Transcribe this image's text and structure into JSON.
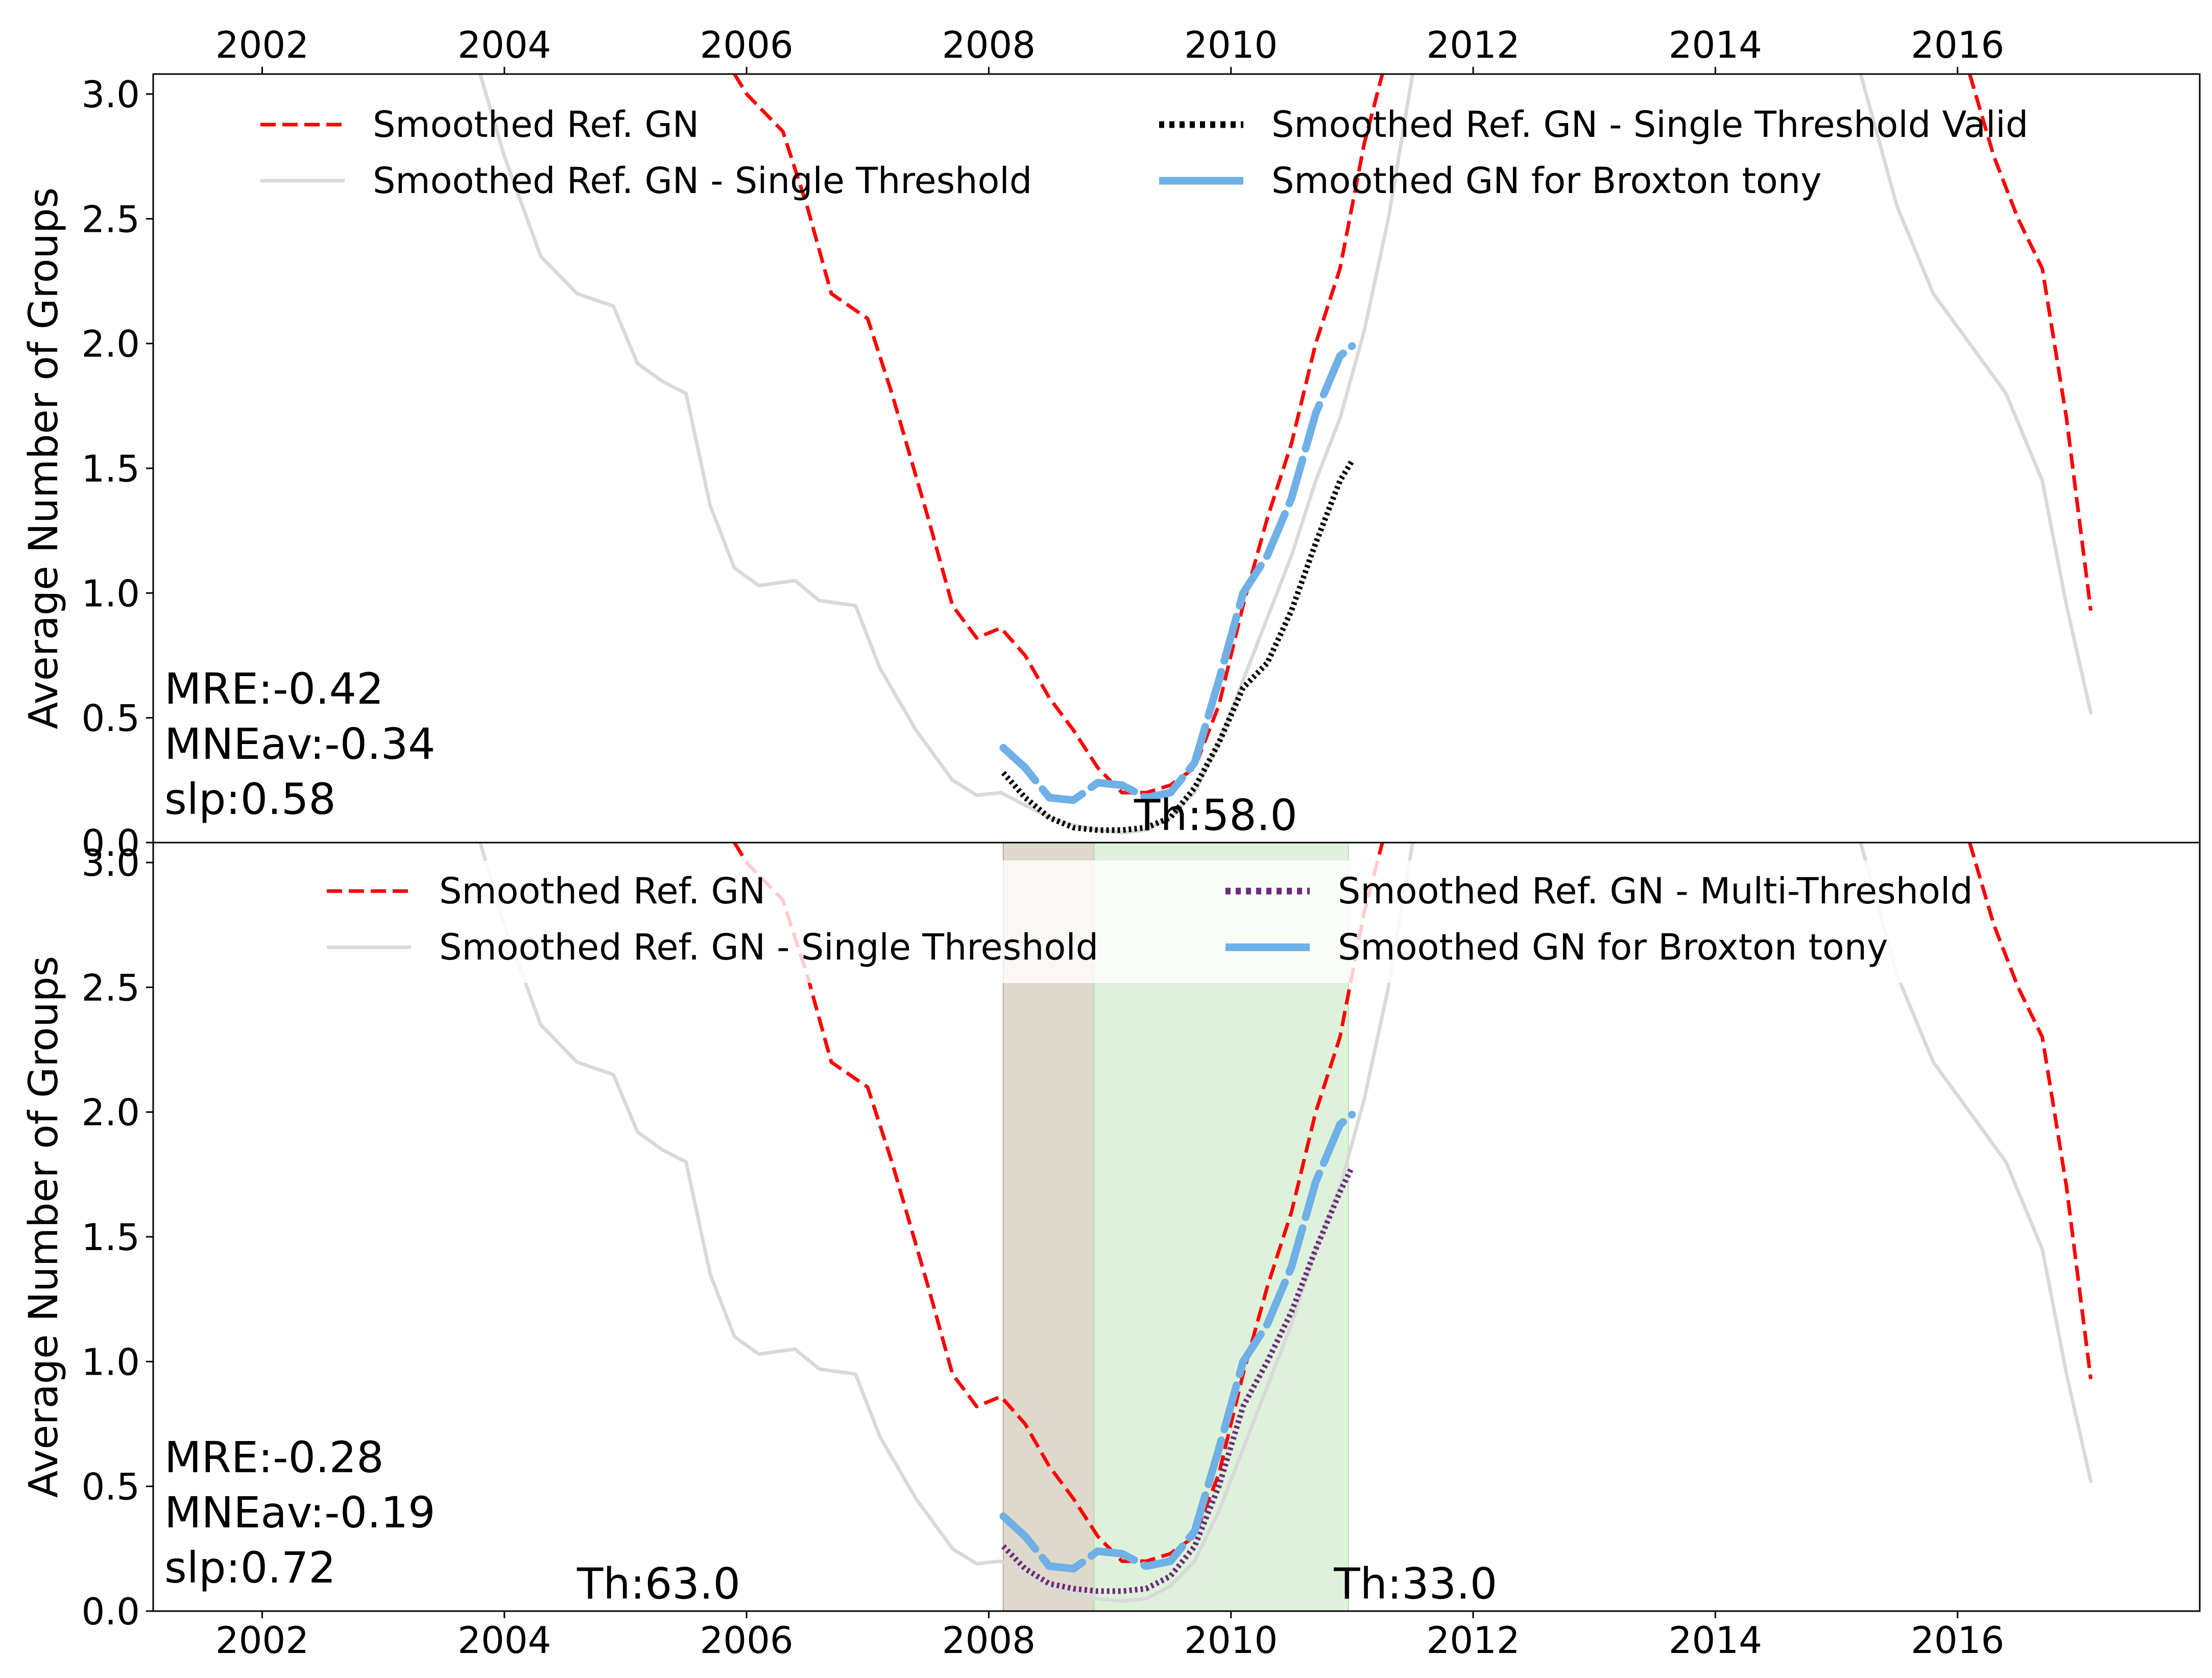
{
  "colors": {
    "ref": "#ff0000",
    "single": "#d9d9d9",
    "valid": "#000000",
    "multi": "#6b2c7a",
    "observer": "#6fb0e6",
    "span_brown": "#b5ab8c",
    "span_green": "#b6e2b0"
  },
  "chart_data": [
    {
      "type": "line",
      "x_ticks": [
        2002,
        2004,
        2006,
        2008,
        2010,
        2012,
        2014,
        2016
      ],
      "x_tick_labels": [
        "2002",
        "2004",
        "2006",
        "2008",
        "2010",
        "2012",
        "2014",
        "2016"
      ],
      "xlim": [
        2001.1,
        2018.0
      ],
      "ylim": [
        0,
        3.08
      ],
      "y_ticks": [
        0.0,
        0.5,
        1.0,
        1.5,
        2.0,
        2.5,
        3.0
      ],
      "y_tick_labels": [
        "0.0",
        "0.5",
        "1.0",
        "1.5",
        "2.0",
        "2.5",
        "3.0"
      ],
      "x_axis_position": "top",
      "ylabel": "Average Number of Groups",
      "legend": {
        "columns": 2,
        "entries": [
          {
            "label": "Smoothed Ref. GN",
            "style": "dashed",
            "color": "#ff0000"
          },
          {
            "label": "Smoothed Ref. GN - Single Threshold",
            "style": "solid",
            "color": "#d9d9d9"
          },
          {
            "label": "Smoothed Ref. GN - Single Threshold Valid",
            "style": "dotted",
            "color": "#000000"
          },
          {
            "label": "Smoothed GN for Broxton tony",
            "style": "solid-thick",
            "color": "#6fb0e6"
          }
        ]
      },
      "stats": [
        "MRE:-0.42",
        "MNEav:-0.34",
        "slp:0.58"
      ],
      "threshold_labels": [
        {
          "text": "Th:58.0",
          "x": 2009.2,
          "y": 0.05
        }
      ],
      "spans": [],
      "series": [
        {
          "name": "Smoothed Ref. GN",
          "role": "ref",
          "x": [
            2005.9,
            2006.0,
            2006.3,
            2006.5,
            2006.7,
            2007.0,
            2007.2,
            2007.5,
            2007.7,
            2007.9,
            2008.1,
            2008.3,
            2008.5,
            2008.7,
            2008.9,
            2009.1,
            2009.3,
            2009.5,
            2009.7,
            2009.9,
            2010.1,
            2010.3,
            2010.5,
            2010.7,
            2010.9,
            2011.1,
            2011.25
          ],
          "y": [
            3.08,
            3.0,
            2.85,
            2.55,
            2.2,
            2.1,
            1.8,
            1.3,
            0.95,
            0.82,
            0.86,
            0.75,
            0.58,
            0.45,
            0.3,
            0.2,
            0.2,
            0.23,
            0.3,
            0.55,
            0.95,
            1.3,
            1.6,
            2.0,
            2.3,
            2.8,
            3.08
          ]
        },
        {
          "name": "Smoothed Ref. GN",
          "role": "ref",
          "x": [
            2016.1,
            2016.3,
            2016.5,
            2016.7,
            2016.9,
            2017.1
          ],
          "y": [
            3.08,
            2.75,
            2.5,
            2.3,
            1.7,
            0.93
          ]
        },
        {
          "name": "Smoothed Ref. GN - Single Threshold",
          "role": "single",
          "x": [
            2003.8,
            2004.0,
            2004.3,
            2004.6,
            2004.9,
            2005.1,
            2005.3,
            2005.5,
            2005.7,
            2005.9,
            2006.1,
            2006.4,
            2006.6,
            2006.9,
            2007.1,
            2007.4,
            2007.7,
            2007.9,
            2008.1,
            2008.3,
            2008.5,
            2008.7,
            2008.9,
            2009.1,
            2009.3,
            2009.5,
            2009.7,
            2009.9,
            2010.1,
            2010.3,
            2010.5,
            2010.7,
            2010.9,
            2011.1,
            2011.3,
            2011.5
          ],
          "y": [
            3.08,
            2.75,
            2.35,
            2.2,
            2.15,
            1.92,
            1.85,
            1.8,
            1.35,
            1.1,
            1.03,
            1.05,
            0.97,
            0.95,
            0.7,
            0.45,
            0.25,
            0.19,
            0.2,
            0.15,
            0.1,
            0.07,
            0.05,
            0.04,
            0.05,
            0.1,
            0.2,
            0.4,
            0.65,
            0.9,
            1.15,
            1.45,
            1.7,
            2.05,
            2.5,
            3.08
          ]
        },
        {
          "name": "Smoothed Ref. GN - Single Threshold",
          "role": "single",
          "x": [
            2015.2,
            2015.5,
            2015.8,
            2016.1,
            2016.4,
            2016.7,
            2016.9,
            2017.1
          ],
          "y": [
            3.08,
            2.55,
            2.2,
            2.0,
            1.8,
            1.45,
            0.95,
            0.52
          ]
        },
        {
          "name": "Smoothed Ref. GN - Single Threshold Valid",
          "role": "valid",
          "x": [
            2008.12,
            2008.3,
            2008.5,
            2008.7,
            2008.9,
            2009.1,
            2009.3,
            2009.5,
            2009.7,
            2009.9,
            2010.1,
            2010.3,
            2010.5,
            2010.7,
            2010.9,
            2011.0
          ],
          "y": [
            0.28,
            0.18,
            0.1,
            0.06,
            0.05,
            0.05,
            0.06,
            0.1,
            0.22,
            0.4,
            0.62,
            0.72,
            0.93,
            1.2,
            1.45,
            1.53
          ]
        },
        {
          "name": "Smoothed GN for Broxton tony",
          "role": "observer",
          "x": [
            2008.12,
            2008.3,
            2008.5,
            2008.7,
            2008.9,
            2009.1,
            2009.3,
            2009.5,
            2009.7,
            2009.9,
            2010.1,
            2010.3,
            2010.5,
            2010.7,
            2010.9,
            2011.0
          ],
          "y": [
            0.38,
            0.3,
            0.18,
            0.17,
            0.24,
            0.23,
            0.18,
            0.2,
            0.32,
            0.65,
            1.0,
            1.15,
            1.38,
            1.72,
            1.95,
            1.99
          ]
        }
      ]
    },
    {
      "type": "line",
      "x_ticks": [
        2002,
        2004,
        2006,
        2008,
        2010,
        2012,
        2014,
        2016
      ],
      "x_tick_labels": [
        "2002",
        "2004",
        "2006",
        "2008",
        "2010",
        "2012",
        "2014",
        "2016"
      ],
      "xlim": [
        2001.1,
        2018.0
      ],
      "ylim": [
        0,
        3.08
      ],
      "y_ticks": [
        0.0,
        0.5,
        1.0,
        1.5,
        2.0,
        2.5,
        3.0
      ],
      "y_tick_labels": [
        "0.0",
        "0.5",
        "1.0",
        "1.5",
        "2.0",
        "2.5",
        "3.0"
      ],
      "x_axis_position": "bottom",
      "ylabel": "Average Number of Groups",
      "legend": {
        "columns": 2,
        "entries": [
          {
            "label": "Smoothed Ref. GN",
            "style": "dashed",
            "color": "#ff0000"
          },
          {
            "label": "Smoothed Ref. GN - Single Threshold",
            "style": "solid",
            "color": "#d9d9d9"
          },
          {
            "label": "Smoothed Ref. GN - Multi-Threshold",
            "style": "dotted",
            "color": "#6b2c7a"
          },
          {
            "label": "Smoothed GN for Broxton tony",
            "style": "solid-thick",
            "color": "#6fb0e6"
          }
        ]
      },
      "stats": [
        "MRE:-0.28",
        "MNEav:-0.19",
        "slp:0.72"
      ],
      "threshold_labels": [
        {
          "text": "Th:63.0",
          "x": 2004.6,
          "y": 0.05
        },
        {
          "text": "Th:33.0",
          "x": 2010.85,
          "y": 0.05
        }
      ],
      "spans": [
        {
          "x0": 2008.12,
          "x1": 2008.87,
          "color": "#b5ab8c"
        },
        {
          "x0": 2008.87,
          "x1": 2010.97,
          "color": "#b6e2b0"
        }
      ],
      "series": [
        {
          "name": "Smoothed Ref. GN",
          "role": "ref",
          "x": [
            2005.9,
            2006.0,
            2006.3,
            2006.5,
            2006.7,
            2007.0,
            2007.2,
            2007.5,
            2007.7,
            2007.9,
            2008.1,
            2008.3,
            2008.5,
            2008.7,
            2008.9,
            2009.1,
            2009.3,
            2009.5,
            2009.7,
            2009.9,
            2010.1,
            2010.3,
            2010.5,
            2010.7,
            2010.9,
            2011.1,
            2011.25
          ],
          "y": [
            3.08,
            3.0,
            2.85,
            2.55,
            2.2,
            2.1,
            1.8,
            1.3,
            0.95,
            0.82,
            0.86,
            0.75,
            0.58,
            0.45,
            0.3,
            0.2,
            0.2,
            0.23,
            0.3,
            0.55,
            0.95,
            1.3,
            1.6,
            2.0,
            2.3,
            2.8,
            3.08
          ]
        },
        {
          "name": "Smoothed Ref. GN",
          "role": "ref",
          "x": [
            2016.1,
            2016.3,
            2016.5,
            2016.7,
            2016.9,
            2017.1
          ],
          "y": [
            3.08,
            2.75,
            2.5,
            2.3,
            1.7,
            0.93
          ]
        },
        {
          "name": "Smoothed Ref. GN - Single Threshold",
          "role": "single",
          "x": [
            2003.8,
            2004.0,
            2004.3,
            2004.6,
            2004.9,
            2005.1,
            2005.3,
            2005.5,
            2005.7,
            2005.9,
            2006.1,
            2006.4,
            2006.6,
            2006.9,
            2007.1,
            2007.4,
            2007.7,
            2007.9,
            2008.1,
            2008.3,
            2008.5,
            2008.7,
            2008.9,
            2009.1,
            2009.3,
            2009.5,
            2009.7,
            2009.9,
            2010.1,
            2010.3,
            2010.5,
            2010.7,
            2010.9,
            2011.1,
            2011.3,
            2011.5
          ],
          "y": [
            3.08,
            2.75,
            2.35,
            2.2,
            2.15,
            1.92,
            1.85,
            1.8,
            1.35,
            1.1,
            1.03,
            1.05,
            0.97,
            0.95,
            0.7,
            0.45,
            0.25,
            0.19,
            0.2,
            0.15,
            0.1,
            0.07,
            0.05,
            0.04,
            0.05,
            0.1,
            0.2,
            0.4,
            0.65,
            0.9,
            1.15,
            1.45,
            1.7,
            2.05,
            2.5,
            3.08
          ]
        },
        {
          "name": "Smoothed Ref. GN - Single Threshold",
          "role": "single",
          "x": [
            2015.2,
            2015.5,
            2015.8,
            2016.1,
            2016.4,
            2016.7,
            2016.9,
            2017.1
          ],
          "y": [
            3.08,
            2.55,
            2.2,
            2.0,
            1.8,
            1.45,
            0.95,
            0.52
          ]
        },
        {
          "name": "Smoothed Ref. GN - Multi-Threshold",
          "role": "multi",
          "x": [
            2008.12,
            2008.3,
            2008.5,
            2008.7,
            2008.9,
            2009.1,
            2009.3,
            2009.5,
            2009.7,
            2009.9,
            2010.1,
            2010.3,
            2010.5,
            2010.7,
            2010.9,
            2011.0
          ],
          "y": [
            0.26,
            0.17,
            0.11,
            0.09,
            0.08,
            0.08,
            0.09,
            0.14,
            0.26,
            0.5,
            0.82,
            1.0,
            1.2,
            1.45,
            1.68,
            1.78
          ]
        },
        {
          "name": "Smoothed GN for Broxton tony",
          "role": "observer",
          "x": [
            2008.12,
            2008.3,
            2008.5,
            2008.7,
            2008.9,
            2009.1,
            2009.3,
            2009.5,
            2009.7,
            2009.9,
            2010.1,
            2010.3,
            2010.5,
            2010.7,
            2010.9,
            2011.0
          ],
          "y": [
            0.38,
            0.3,
            0.18,
            0.17,
            0.24,
            0.23,
            0.18,
            0.2,
            0.32,
            0.65,
            1.0,
            1.15,
            1.38,
            1.72,
            1.95,
            1.99
          ]
        }
      ]
    }
  ]
}
